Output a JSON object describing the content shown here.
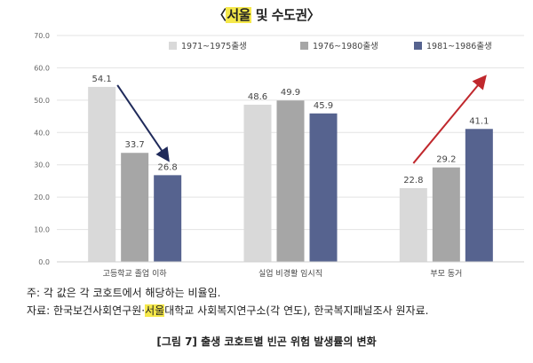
{
  "header": {
    "title_open": "〈",
    "title_highlight": "서울",
    "title_rest": " 및 수도권〉"
  },
  "chart_data": {
    "type": "bar",
    "categories": [
      "고등학교 졸업 이하",
      "실업 비경활 임시직",
      "부모 동거"
    ],
    "series": [
      {
        "name": "1971~1975출생",
        "color": "#d9d9d9",
        "values": [
          54.1,
          48.6,
          22.8
        ]
      },
      {
        "name": "1976~1980출생",
        "color": "#a6a6a6",
        "values": [
          33.7,
          49.9,
          29.2
        ]
      },
      {
        "name": "1981~1986출생",
        "color": "#56638f",
        "values": [
          26.8,
          45.9,
          41.1
        ]
      }
    ],
    "ylim": [
      0,
      70
    ],
    "yticks": [
      "0.0",
      "10.0",
      "20.0",
      "30.0",
      "40.0",
      "50.0",
      "60.0",
      "70.0"
    ],
    "grid": true,
    "legend": "top-right",
    "annotations": [
      {
        "type": "arrow",
        "from_series": 0,
        "to_series": 2,
        "category": 0,
        "color": "#1f2a5a"
      },
      {
        "type": "arrow",
        "from_series": 0,
        "to_series": 2,
        "category": 2,
        "color": "#c0282d"
      }
    ]
  },
  "notes": {
    "note_line": "주: 각 값은 각 코호트에서 해당하는 비율임.",
    "source_prefix": "자료: 한국보건사회연구원·",
    "source_highlight": "서울",
    "source_suffix": "대학교 사회복지연구소(각 연도), 한국복지패널조사 원자료."
  },
  "caption": "[그림 7] 출생 코호트별 빈곤 위험 발생률의 변화"
}
